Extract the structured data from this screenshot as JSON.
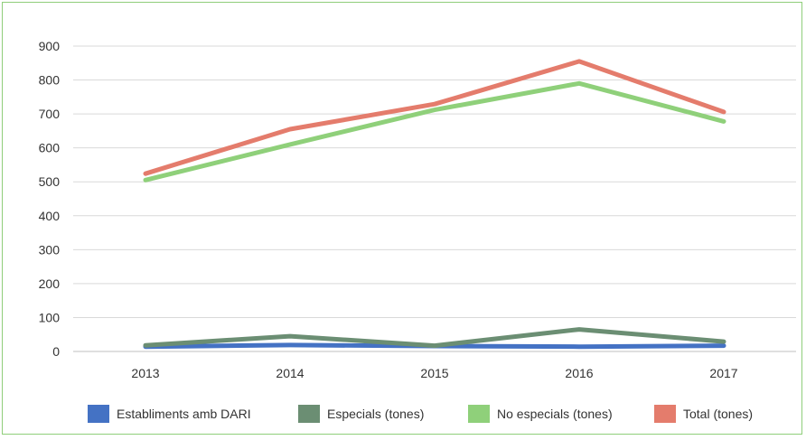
{
  "chart_data": {
    "type": "line",
    "title": "",
    "xlabel": "",
    "ylabel": "",
    "categories": [
      "2013",
      "2014",
      "2015",
      "2016",
      "2017"
    ],
    "ylim": [
      0,
      900
    ],
    "yticks": [
      0,
      100,
      200,
      300,
      400,
      500,
      600,
      700,
      800,
      900
    ],
    "grid": true,
    "legend_position": "bottom",
    "series": [
      {
        "name": "Establiments amb DARI",
        "color": "#4472c4",
        "values": [
          14,
          19,
          16,
          14,
          17
        ]
      },
      {
        "name": "Especials (tones)",
        "color": "#6b8e73",
        "values": [
          18,
          45,
          17,
          65,
          29
        ]
      },
      {
        "name": "No especials (tones)",
        "color": "#8fd07a",
        "values": [
          505,
          610,
          712,
          790,
          678
        ]
      },
      {
        "name": "Total (tones)",
        "color": "#e47c6c",
        "values": [
          524,
          655,
          729,
          855,
          706
        ]
      }
    ]
  }
}
